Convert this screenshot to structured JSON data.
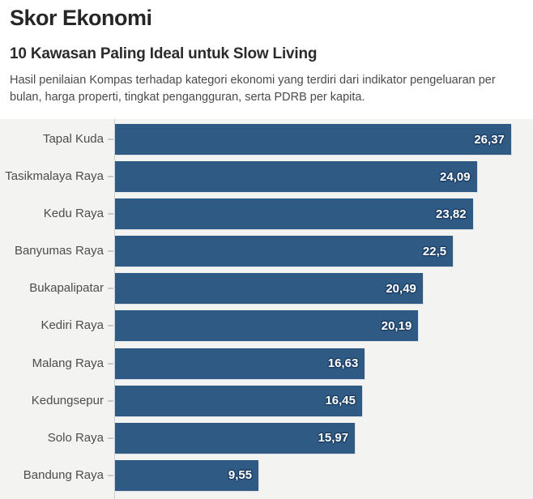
{
  "header": {
    "title": "Skor Ekonomi",
    "subtitle": "10 Kawasan Paling Ideal untuk Slow Living",
    "description": "Hasil penilaian Kompas terhadap kategori ekonomi yang terdiri dari indikator pengeluaran per bulan, harga properti, tingkat pengangguran, serta PDRB per kapita."
  },
  "colors": {
    "bar": "#2e5a84",
    "chart_background": "#f3f3f1",
    "page_background": "#ffffff",
    "axis_line": "#cfcfcf",
    "tick": "#c9c9c9",
    "category_label_text": "#4d4d4d",
    "value_text": "#ffffff",
    "value_outline": "#1d3f66",
    "title_text": "#262626",
    "description_text": "#4a4a4a"
  },
  "chart_data": {
    "type": "bar",
    "orientation": "horizontal",
    "title": "Skor Ekonomi",
    "subtitle": "10 Kawasan Paling Ideal untuk Slow Living",
    "categories": [
      "Tapal Kuda",
      "Tasikmalaya Raya",
      "Kedu Raya",
      "Banyumas Raya",
      "Bukapalipatar",
      "Kediri Raya",
      "Malang Raya",
      "Kedungsepur",
      "Solo Raya",
      "Bandung Raya"
    ],
    "values": [
      26.37,
      24.09,
      23.82,
      22.5,
      20.49,
      20.19,
      16.63,
      16.45,
      15.97,
      9.55
    ],
    "value_labels": [
      "26,37",
      "24,09",
      "23,82",
      "22,5",
      "20,49",
      "20,19",
      "16,63",
      "16,45",
      "15,97",
      "9,55"
    ],
    "xlabel": "",
    "ylabel": "",
    "xlim": [
      0,
      27.8
    ],
    "grid": false,
    "legend": false,
    "value_label_position": "inside-end",
    "decimal_separator": ","
  }
}
